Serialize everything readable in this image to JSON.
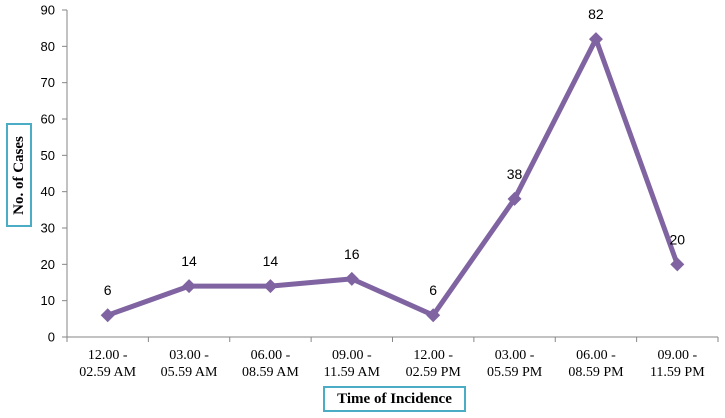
{
  "chart_data": {
    "type": "line",
    "categories": [
      [
        "12.00 -",
        "02.59 AM"
      ],
      [
        "03.00 -",
        "05.59 AM"
      ],
      [
        "06.00 -",
        "08.59 AM"
      ],
      [
        "09.00 -",
        "11.59 AM"
      ],
      [
        "12.00 -",
        "02.59 PM"
      ],
      [
        "03.00 -",
        "05.59 PM"
      ],
      [
        "06.00 -",
        "08.59 PM"
      ],
      [
        "09.00 -",
        "11.59 PM"
      ]
    ],
    "series": [
      {
        "values": [
          6,
          14,
          14,
          16,
          6,
          38,
          82,
          20
        ],
        "color": "#8064a2",
        "marker": "diamond"
      }
    ],
    "xlabel": "Time of Incidence",
    "ylabel": "No. of Cases",
    "ylim": [
      0,
      90
    ],
    "yticks": [
      0,
      10,
      20,
      30,
      40,
      50,
      60,
      70,
      80,
      90
    ],
    "grid": false,
    "legend": "none",
    "data_labels": true
  }
}
